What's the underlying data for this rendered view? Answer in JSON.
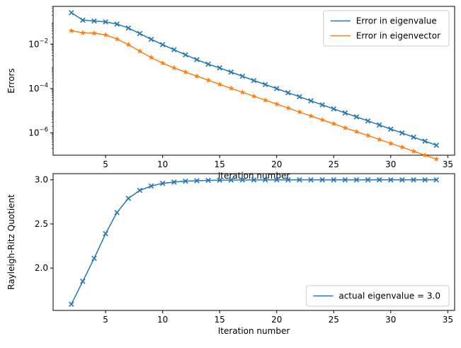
{
  "chart_data": [
    {
      "type": "line",
      "xlabel": "Iteration number",
      "ylabel": "Errors",
      "yscale": "log",
      "xlim": [
        0.4,
        35.6
      ],
      "ylim": [
        1e-07,
        0.5
      ],
      "x_ticks": [
        5,
        10,
        15,
        20,
        25,
        30,
        35
      ],
      "y_ticks": [
        {
          "value": 1e-06,
          "base": "10",
          "exp": "−6"
        },
        {
          "value": 0.0001,
          "base": "10",
          "exp": "−4"
        },
        {
          "value": 0.01,
          "base": "10",
          "exp": "−2"
        }
      ],
      "legend_loc": "upper right",
      "x": [
        2,
        3,
        4,
        5,
        6,
        7,
        8,
        9,
        10,
        11,
        12,
        13,
        14,
        15,
        16,
        17,
        18,
        19,
        20,
        21,
        22,
        23,
        24,
        25,
        26,
        27,
        28,
        29,
        30,
        31,
        32,
        33,
        34
      ],
      "series": [
        {
          "name": "Error in eigenvalue",
          "color": "#1f77b4",
          "marker": "x",
          "values": [
            0.26,
            0.12,
            0.11,
            0.1,
            0.08,
            0.053,
            0.03,
            0.0165,
            0.0095,
            0.0056,
            0.0033,
            0.002,
            0.00125,
            0.00085,
            0.00055,
            0.00036,
            0.00023,
            0.000152,
            0.0001,
            6.5e-05,
            4.3e-05,
            2.8e-05,
            1.85e-05,
            1.22e-05,
            8e-06,
            5.3e-06,
            3.5e-06,
            2.3e-06,
            1.5e-06,
            1e-06,
            6.5e-07,
            4.3e-07,
            2.8e-07
          ]
        },
        {
          "name": "Error in eigenvector",
          "color": "#ff7f0e",
          "marker": "*",
          "values": [
            0.04,
            0.032,
            0.031,
            0.026,
            0.017,
            0.0095,
            0.0048,
            0.0025,
            0.0014,
            0.00085,
            0.00055,
            0.00036,
            0.00024,
            0.000155,
            0.000103,
            6.8e-05,
            4.5e-05,
            3e-05,
            2e-05,
            1.33e-05,
            8.8e-06,
            5.8e-06,
            3.9e-06,
            2.6e-06,
            1.7e-06,
            1.15e-06,
            7.7e-07,
            5.1e-07,
            3.4e-07,
            2.3e-07,
            1.5e-07,
            1e-07,
            6.7e-08
          ]
        }
      ]
    },
    {
      "type": "line",
      "xlabel": "Iteration number",
      "ylabel": "Rayleigh-Ritz Quotient",
      "xlim": [
        0.4,
        35.6
      ],
      "ylim": [
        1.52,
        3.07
      ],
      "x_ticks": [
        5,
        10,
        15,
        20,
        25,
        30,
        35
      ],
      "y_ticks": [
        2.0,
        2.5,
        3.0
      ],
      "y_tick_labels": [
        "2.0",
        "2.5",
        "3.0"
      ],
      "legend_loc": "lower right",
      "x": [
        2,
        3,
        4,
        5,
        6,
        7,
        8,
        9,
        10,
        11,
        12,
        13,
        14,
        15,
        16,
        17,
        18,
        19,
        20,
        21,
        22,
        23,
        24,
        25,
        26,
        27,
        28,
        29,
        30,
        31,
        32,
        33,
        34
      ],
      "series": [
        {
          "name": "actual eigenvalue = 3.0",
          "color": "#1f77b4",
          "marker": "x",
          "values": [
            1.59,
            1.85,
            2.11,
            2.39,
            2.63,
            2.79,
            2.88,
            2.93,
            2.96,
            2.975,
            2.985,
            2.99,
            2.994,
            2.996,
            2.998,
            2.999,
            2.999,
            3.0,
            3.0,
            3.0,
            3.0,
            3.0,
            3.0,
            3.0,
            3.0,
            3.0,
            3.0,
            3.0,
            3.0,
            3.0,
            3.0,
            3.0,
            3.0
          ]
        }
      ]
    }
  ]
}
